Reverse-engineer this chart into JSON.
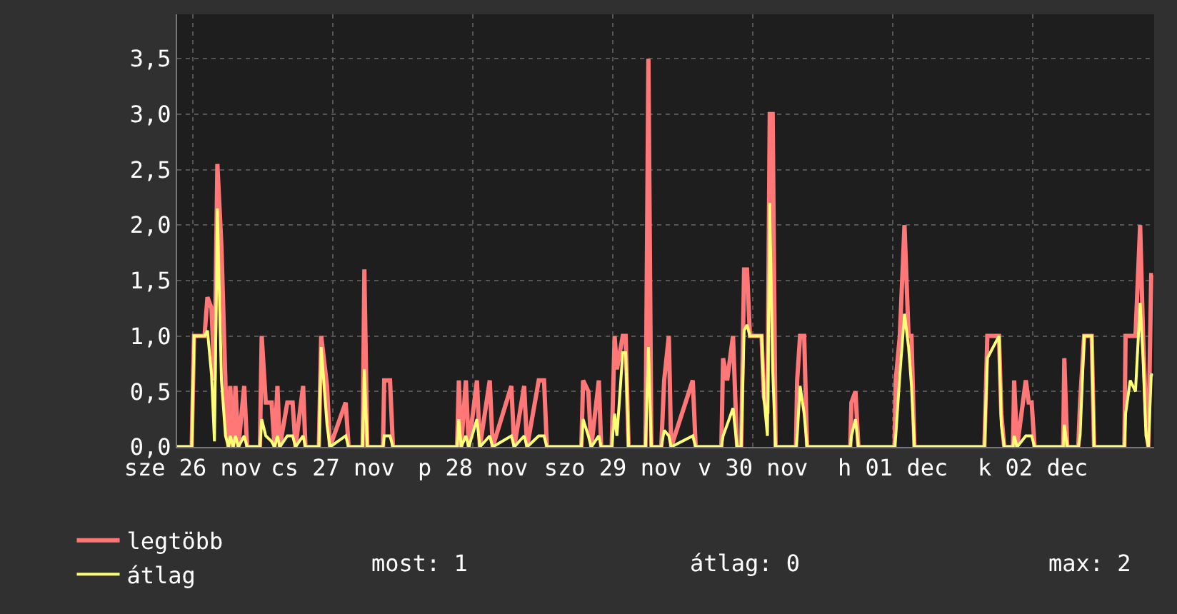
{
  "chart_data": {
    "type": "line",
    "x": [
      "--11-26T09:18",
      "--11-26T11:48",
      "--11-26T12:12",
      "--11-26T14:00",
      "--11-26T14:30",
      "--11-26T15:12",
      "--11-26T15:42",
      "--11-26T16:12",
      "--11-26T16:54",
      "--11-26T17:36",
      "--11-26T18:06",
      "--11-26T18:24",
      "--11-26T18:54",
      "--11-26T19:18",
      "--11-26T19:48",
      "--11-26T20:48",
      "--11-26T21:18",
      "--11-26T23:30",
      "--11-26T23:48",
      "--11-27T00:30",
      "--11-27T01:30",
      "--11-27T02:00",
      "--11-27T02:30",
      "--11-27T02:54",
      "--11-27T04:12",
      "--11-27T05:06",
      "--11-27T05:36",
      "--11-27T06:54",
      "--11-27T07:18",
      "--11-27T09:36",
      "--11-27T10:00",
      "--11-27T11:00",
      "--11-27T11:30",
      "--11-27T14:12",
      "--11-27T14:42",
      "--11-27T17:06",
      "--11-27T17:24",
      "--11-27T17:54",
      "--11-27T20:36",
      "--11-27T20:48",
      "--11-27T21:48",
      "--11-27T22:18",
      "--11-28T09:18",
      "--11-28T09:36",
      "--11-28T10:00",
      "--11-28T10:48",
      "--11-28T11:18",
      "--11-28T12:42",
      "--11-28T13:12",
      "--11-28T14:54",
      "--11-28T15:24",
      "--11-28T18:36",
      "--11-28T19:06",
      "--11-28T20:48",
      "--11-28T21:18",
      "--11-28T23:18",
      "--11-29T00:12",
      "--11-29T00:42",
      "--11-29T06:36",
      "--11-29T06:54",
      "--11-29T07:48",
      "--11-29T08:18",
      "--11-29T09:36",
      "--11-29T10:00",
      "--11-29T11:48",
      "--11-29T12:18",
      "--11-29T12:42",
      "--11-29T13:42",
      "--11-29T14:12",
      "--11-29T14:42",
      "--11-29T17:36",
      "--11-29T18:06",
      "--11-29T18:36",
      "--11-29T20:18",
      "--11-29T20:48",
      "--11-29T21:36",
      "--11-29T22:00",
      "--11-30T01:42",
      "--11-30T02:12",
      "--11-30T06:36",
      "--11-30T06:54",
      "--11-30T07:36",
      "--11-30T08:36",
      "--11-30T09:18",
      "--11-30T10:00",
      "--11-30T10:30",
      "--11-30T11:00",
      "--11-30T11:30",
      "--11-30T13:30",
      "--11-30T13:54",
      "--11-30T14:30",
      "--11-30T14:54",
      "--11-30T15:24",
      "--11-30T15:54",
      "--11-30T19:24",
      "--11-30T19:36",
      "--11-30T20:06",
      "--11-30T20:48",
      "--11-30T21:18",
      "--12-01T04:42",
      "--12-01T04:54",
      "--12-01T05:36",
      "--12-01T06:06",
      "--12-01T12:18",
      "--12-01T12:30",
      "--12-01T13:12",
      "--12-01T14:00",
      "--12-01T14:42",
      "--12-01T15:12",
      "--12-01T15:42",
      "--12-02T03:42",
      "--12-02T04:12",
      "--12-02T06:12",
      "--12-02T06:36",
      "--12-02T07:06",
      "--12-02T08:36",
      "--12-02T08:48",
      "--12-02T09:18",
      "--12-02T10:48",
      "--12-02T11:18",
      "--12-02T11:48",
      "--12-02T12:18",
      "--12-02T17:12",
      "--12-02T17:24",
      "--12-02T17:54",
      "--12-02T19:48",
      "--12-02T20:06",
      "--12-02T20:48",
      "--12-02T22:06",
      "--12-02T22:30",
      "--12-03T03:42",
      "--12-03T03:54",
      "--12-03T04:42",
      "--12-03T05:36",
      "--12-03T06:24",
      "--12-03T06:54",
      "--12-03T07:24",
      "--12-03T07:48",
      "--12-03T08:18",
      "--12-03T08:36"
    ],
    "series": [
      {
        "name": "legtöbb",
        "color": "#ff7777",
        "values": [
          0,
          0,
          1.0,
          1.0,
          1.35,
          1.25,
          0.6,
          2.55,
          1.8,
          0.55,
          0,
          0.55,
          0,
          0.55,
          0,
          0.55,
          0,
          0,
          1.0,
          0.4,
          0.4,
          0,
          0.55,
          0,
          0.4,
          0.4,
          0,
          0.55,
          0,
          0,
          1.0,
          0.55,
          0,
          0.4,
          0,
          0,
          1.6,
          0,
          0,
          0.6,
          0.6,
          0,
          0,
          0.6,
          0,
          0.6,
          0,
          0.6,
          0,
          0.6,
          0,
          0.55,
          0,
          0.55,
          0,
          0.6,
          0.6,
          0,
          0,
          0.6,
          0.5,
          0,
          0.6,
          0,
          0,
          1.0,
          0.7,
          1.0,
          1.0,
          0,
          0,
          3.5,
          0,
          0,
          0.6,
          1.0,
          0,
          0.6,
          0,
          0,
          0.8,
          0.6,
          1.0,
          0,
          0,
          1.6,
          1.6,
          1.0,
          1.0,
          0.45,
          0.3,
          3.0,
          3.0,
          0,
          0,
          0.6,
          1.0,
          1.0,
          0,
          0,
          0.4,
          0.5,
          0,
          0,
          0.6,
          1.0,
          2.0,
          1.0,
          1.0,
          0,
          0,
          1.0,
          1.0,
          0.3,
          0,
          0,
          0.6,
          0,
          0.6,
          0.4,
          0.4,
          0,
          0,
          0.8,
          0,
          0,
          0.4,
          1.0,
          1.0,
          0,
          0,
          1.0,
          1.0,
          1.0,
          2.0,
          1.0,
          0.3,
          0,
          1.55,
          1.55
        ]
      },
      {
        "name": "átlag",
        "color": "#ffff77",
        "values": [
          0,
          0,
          1.0,
          1.0,
          1.05,
          0.65,
          0.05,
          2.15,
          0.6,
          0.1,
          0,
          0.1,
          0,
          0.1,
          0,
          0.1,
          0,
          0,
          0.25,
          0.1,
          0.05,
          0,
          0.1,
          0,
          0.1,
          0.1,
          0,
          0.1,
          0,
          0,
          0.9,
          0.2,
          0,
          0.1,
          0,
          0,
          0.7,
          0,
          0,
          0.1,
          0.1,
          0,
          0,
          0.25,
          0,
          0.1,
          0,
          0.25,
          0,
          0.1,
          0,
          0.1,
          0,
          0.1,
          0,
          0.1,
          0.1,
          0,
          0,
          0.25,
          0.1,
          0,
          0.1,
          0,
          0,
          0.3,
          0.1,
          0.85,
          0.85,
          0,
          0,
          0.9,
          0,
          0,
          0.15,
          0.1,
          0,
          0.1,
          0,
          0,
          0.1,
          0.2,
          0.35,
          0,
          0,
          1.05,
          1.1,
          1.0,
          1.0,
          0.45,
          0.1,
          2.2,
          0.7,
          0,
          0,
          0.1,
          0.55,
          0.3,
          0,
          0,
          0.1,
          0.25,
          0,
          0,
          0.1,
          0.65,
          1.2,
          0.9,
          0.55,
          0,
          0,
          0.8,
          1.0,
          0.2,
          0,
          0,
          0.1,
          0,
          0.1,
          0.1,
          0.1,
          0,
          0,
          0.2,
          0,
          0,
          0.1,
          1.0,
          1.0,
          0,
          0,
          0.3,
          0.6,
          0.5,
          1.3,
          0.8,
          0.1,
          0,
          0.65,
          0.65
        ]
      }
    ],
    "xlim": [
      "--11-26T09:18",
      "--12-03T08:48"
    ],
    "xticks": [
      {
        "value": "--11-26T12:00",
        "label": "sze 26 nov"
      },
      {
        "value": "--11-27T12:00",
        "label": "cs 27 nov"
      },
      {
        "value": "--11-28T12:00",
        "label": "p 28 nov"
      },
      {
        "value": "--11-29T12:00",
        "label": "szo 29 nov"
      },
      {
        "value": "--11-30T12:00",
        "label": "v 30 nov"
      },
      {
        "value": "--12-01T12:00",
        "label": "h 01 dec"
      },
      {
        "value": "--12-02T12:00",
        "label": "k 02 dec"
      }
    ],
    "ylim": [
      0,
      3.9
    ],
    "yticks": [
      {
        "value": 0,
        "label": "0,0"
      },
      {
        "value": 0.5,
        "label": "0,5"
      },
      {
        "value": 1,
        "label": "1,0"
      },
      {
        "value": 1.5,
        "label": "1,5"
      },
      {
        "value": 2,
        "label": "2,0"
      },
      {
        "value": 2.5,
        "label": "2,5"
      },
      {
        "value": 3,
        "label": "3,0"
      },
      {
        "value": 3.5,
        "label": "3,5"
      }
    ],
    "grid": true,
    "legend": "bottom left",
    "line_style": "solid",
    "annotations": [
      "most: 1",
      "átlag: 0",
      "max: 2"
    ]
  }
}
